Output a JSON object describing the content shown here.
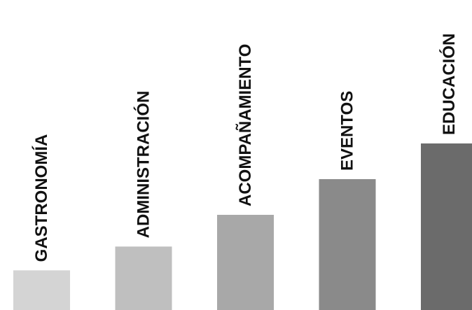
{
  "chart_data": {
    "type": "bar",
    "categories": [
      "GASTRONOMÍA",
      "ADMINISTRACIÓN",
      "ACOMPAÑAMIENTO",
      "EVENTOS",
      "EDUCACIÓN"
    ],
    "values": [
      1,
      1.6,
      2.4,
      3.3,
      4.2
    ],
    "ylim": [
      0,
      4.2
    ],
    "grid": false,
    "legend": "none",
    "bar_colors": [
      "#d4d4d4",
      "#bfbfbf",
      "#a8a8a8",
      "#8a8a8a",
      "#6b6b6b"
    ]
  }
}
